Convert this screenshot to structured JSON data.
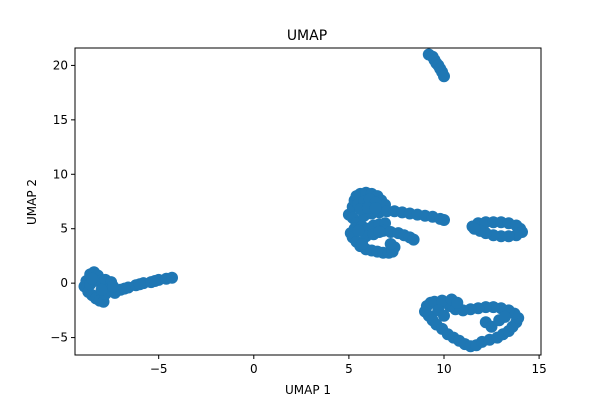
{
  "chart_data": {
    "type": "scatter",
    "title": "UMAP",
    "xlabel": "UMAP 1",
    "ylabel": "UMAP 2",
    "xlim": [
      -9.4,
      15.1
    ],
    "ylim": [
      -6.6,
      21.6
    ],
    "xticks": [
      -5,
      0,
      5,
      10,
      15
    ],
    "yticks": [
      -5,
      0,
      5,
      10,
      15,
      20
    ],
    "grid": false,
    "legend": "none",
    "marker_color": "#1f77b4",
    "series": [
      {
        "points": [
          [
            -8.8,
            0.2
          ],
          [
            -8.6,
            0.8
          ],
          [
            -8.4,
            1.0
          ],
          [
            -8.2,
            0.7
          ],
          [
            -8.9,
            -0.3
          ],
          [
            -8.7,
            -0.8
          ],
          [
            -8.5,
            -1.1
          ],
          [
            -8.3,
            -1.4
          ],
          [
            -8.1,
            -1.6
          ],
          [
            -7.9,
            -1.7
          ],
          [
            -8.6,
            -0.1
          ],
          [
            -8.2,
            0.2
          ],
          [
            -7.8,
            0.3
          ],
          [
            -7.5,
            0.1
          ],
          [
            -7.6,
            -0.5
          ],
          [
            -7.8,
            -1.0
          ],
          [
            -7.3,
            -0.9
          ],
          [
            -7.0,
            -0.6
          ],
          [
            -6.6,
            -0.4
          ],
          [
            -6.2,
            -0.2
          ],
          [
            -5.8,
            0.0
          ],
          [
            -5.4,
            0.1
          ],
          [
            -5.0,
            0.3
          ],
          [
            -4.6,
            0.4
          ],
          [
            -4.3,
            0.5
          ],
          [
            -8.5,
            0.4
          ],
          [
            -8.0,
            -0.6
          ],
          [
            -7.4,
            -0.3
          ],
          [
            -6.8,
            -0.5
          ],
          [
            -6.0,
            -0.1
          ],
          [
            -5.2,
            0.2
          ],
          [
            9.2,
            21.0
          ],
          [
            9.4,
            20.8
          ],
          [
            9.5,
            20.5
          ],
          [
            9.6,
            20.2
          ],
          [
            9.7,
            20.0
          ],
          [
            9.8,
            19.7
          ],
          [
            9.9,
            19.4
          ],
          [
            10.0,
            19.0
          ],
          [
            5.0,
            6.3
          ],
          [
            5.2,
            7.0
          ],
          [
            5.3,
            7.6
          ],
          [
            5.4,
            8.0
          ],
          [
            5.6,
            8.2
          ],
          [
            5.9,
            8.3
          ],
          [
            6.2,
            8.2
          ],
          [
            6.5,
            8.0
          ],
          [
            6.7,
            7.6
          ],
          [
            6.9,
            7.2
          ],
          [
            5.5,
            7.3
          ],
          [
            5.8,
            7.5
          ],
          [
            6.1,
            7.7
          ],
          [
            6.4,
            7.4
          ],
          [
            5.2,
            6.0
          ],
          [
            5.4,
            5.5
          ],
          [
            5.3,
            5.0
          ],
          [
            5.1,
            4.6
          ],
          [
            5.2,
            4.2
          ],
          [
            5.4,
            3.8
          ],
          [
            5.6,
            3.4
          ],
          [
            5.9,
            3.1
          ],
          [
            6.2,
            3.0
          ],
          [
            6.5,
            2.9
          ],
          [
            6.8,
            2.8
          ],
          [
            7.1,
            2.8
          ],
          [
            7.3,
            2.9
          ],
          [
            7.4,
            3.3
          ],
          [
            7.2,
            3.6
          ],
          [
            5.7,
            5.2
          ],
          [
            6.0,
            5.0
          ],
          [
            6.3,
            5.3
          ],
          [
            6.6,
            5.4
          ],
          [
            6.9,
            5.5
          ],
          [
            5.8,
            6.2
          ],
          [
            6.2,
            6.4
          ],
          [
            6.6,
            6.5
          ],
          [
            7.0,
            6.6
          ],
          [
            7.4,
            6.6
          ],
          [
            7.8,
            6.5
          ],
          [
            8.2,
            6.4
          ],
          [
            8.6,
            6.3
          ],
          [
            9.0,
            6.2
          ],
          [
            9.4,
            6.1
          ],
          [
            9.8,
            5.9
          ],
          [
            10.0,
            5.8
          ],
          [
            6.8,
            4.8
          ],
          [
            7.2,
            4.7
          ],
          [
            7.6,
            4.6
          ],
          [
            7.9,
            4.4
          ],
          [
            8.2,
            4.2
          ],
          [
            8.4,
            4.0
          ],
          [
            5.6,
            6.8
          ],
          [
            6.0,
            6.9
          ],
          [
            6.4,
            6.9
          ],
          [
            5.9,
            4.3
          ],
          [
            6.3,
            4.5
          ],
          [
            6.6,
            4.7
          ],
          [
            5.5,
            4.8
          ],
          [
            5.7,
            3.6
          ],
          [
            11.5,
            5.2
          ],
          [
            11.8,
            5.5
          ],
          [
            12.2,
            5.6
          ],
          [
            12.6,
            5.6
          ],
          [
            13.0,
            5.6
          ],
          [
            13.4,
            5.5
          ],
          [
            13.8,
            5.3
          ],
          [
            14.0,
            5.0
          ],
          [
            14.1,
            4.7
          ],
          [
            13.8,
            4.4
          ],
          [
            13.4,
            4.3
          ],
          [
            13.0,
            4.3
          ],
          [
            12.6,
            4.4
          ],
          [
            12.2,
            4.6
          ],
          [
            11.9,
            4.8
          ],
          [
            11.6,
            5.0
          ],
          [
            9.0,
            -2.6
          ],
          [
            9.1,
            -2.1
          ],
          [
            9.3,
            -1.8
          ],
          [
            9.5,
            -1.7
          ],
          [
            9.2,
            -3.0
          ],
          [
            9.4,
            -3.4
          ],
          [
            9.6,
            -3.8
          ],
          [
            9.9,
            -4.2
          ],
          [
            10.2,
            -4.7
          ],
          [
            10.5,
            -5.0
          ],
          [
            10.8,
            -5.3
          ],
          [
            11.1,
            -5.6
          ],
          [
            11.4,
            -5.8
          ],
          [
            11.7,
            -5.7
          ],
          [
            12.0,
            -5.4
          ],
          [
            12.4,
            -5.2
          ],
          [
            12.8,
            -5.0
          ],
          [
            13.1,
            -4.7
          ],
          [
            13.4,
            -4.4
          ],
          [
            13.6,
            -4.0
          ],
          [
            13.8,
            -3.6
          ],
          [
            13.9,
            -3.2
          ],
          [
            13.7,
            -2.8
          ],
          [
            13.4,
            -2.5
          ],
          [
            13.0,
            -2.3
          ],
          [
            12.6,
            -2.2
          ],
          [
            12.2,
            -2.2
          ],
          [
            11.8,
            -2.3
          ],
          [
            11.4,
            -2.4
          ],
          [
            11.0,
            -2.5
          ],
          [
            10.6,
            -2.4
          ],
          [
            10.3,
            -2.1
          ],
          [
            10.1,
            -1.8
          ],
          [
            9.9,
            -1.6
          ],
          [
            10.4,
            -1.5
          ],
          [
            10.7,
            -1.8
          ],
          [
            9.7,
            -2.5
          ],
          [
            10.0,
            -3.0
          ],
          [
            12.2,
            -3.6
          ],
          [
            12.5,
            -4.0
          ],
          [
            12.9,
            -3.4
          ],
          [
            13.2,
            -3.1
          ]
        ]
      }
    ]
  }
}
